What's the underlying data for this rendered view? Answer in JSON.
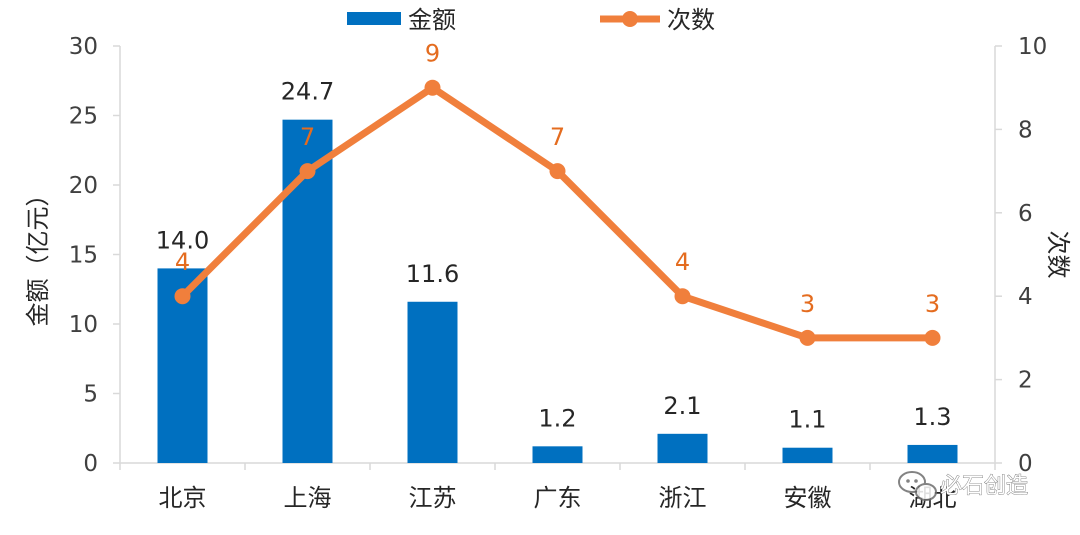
{
  "chart_data": {
    "type": "bar",
    "categories": [
      "北京",
      "上海",
      "江苏",
      "广东",
      "浙江",
      "安徽",
      "湖北"
    ],
    "series": [
      {
        "name": "金额",
        "type": "bar",
        "axis": "left",
        "values": [
          14.0,
          24.7,
          11.6,
          1.2,
          2.1,
          1.1,
          1.3
        ],
        "labels": [
          "14.0",
          "24.7",
          "11.6",
          "1.2",
          "2.1",
          "1.1",
          "1.3"
        ],
        "color": "#0070C0"
      },
      {
        "name": "次数",
        "type": "line",
        "axis": "right",
        "values": [
          4,
          7,
          9,
          7,
          4,
          3,
          3
        ],
        "labels": [
          "4",
          "7",
          "9",
          "7",
          "4",
          "3",
          "3"
        ],
        "color": "#F07F3C"
      }
    ],
    "ylabel": "金额（亿元）",
    "ylim": [
      0,
      30
    ],
    "yticks": [
      "0",
      "5",
      "10",
      "15",
      "20",
      "25",
      "30"
    ],
    "y2label": "次数",
    "y2lim": [
      0,
      10
    ],
    "y2ticks": [
      "0",
      "2",
      "4",
      "6",
      "8",
      "10"
    ],
    "legend_position": "top",
    "grid": false,
    "label_color": "#E46C1F"
  },
  "watermark": {
    "text": "必石创造",
    "icon": "wechat-icon"
  }
}
